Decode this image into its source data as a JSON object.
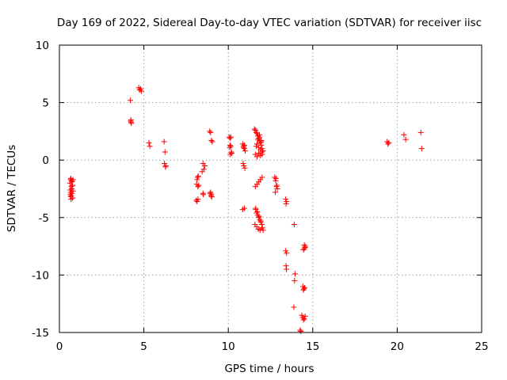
{
  "chart_data": {
    "type": "scatter",
    "title": "Day 169 of 2022, Sidereal Day-to-day VTEC variation (SDTVAR) for receiver iisc",
    "xlabel": "GPS time / hours",
    "ylabel": "SDTVAR / TECUs",
    "xlim": [
      0,
      25
    ],
    "ylim": [
      -15,
      10
    ],
    "xticks": [
      "0",
      "5",
      "10",
      "15",
      "20",
      "25"
    ],
    "yticks": [
      "10",
      "5",
      "0",
      "-5",
      "-10",
      "-15"
    ],
    "xtick_values": [
      0,
      5,
      10,
      15,
      20,
      25
    ],
    "ytick_values": [
      10,
      5,
      0,
      -5,
      -10,
      -15
    ],
    "grid": true,
    "marker": "+",
    "color": "#ff0000",
    "series": [
      {
        "name": "SDTVAR",
        "x": [
          0.62,
          0.65,
          0.68,
          0.7,
          0.72,
          0.75,
          0.78,
          0.8,
          0.63,
          0.66,
          0.7,
          0.74,
          0.78,
          0.64,
          0.69,
          0.73,
          0.77,
          0.8,
          0.67,
          4.2,
          4.22,
          4.24,
          4.26,
          4.23,
          4.7,
          4.75,
          4.8,
          4.85,
          5.3,
          5.35,
          6.2,
          6.25,
          6.3,
          6.22,
          6.28,
          8.1,
          8.15,
          8.2,
          8.25,
          8.12,
          8.18,
          8.22,
          8.15,
          8.2,
          8.5,
          8.55,
          8.6,
          8.45,
          8.52,
          8.5,
          8.9,
          8.95,
          9.0,
          9.05,
          8.92,
          8.98,
          9.02,
          8.95,
          9.0,
          10.05,
          10.1,
          10.15,
          10.2,
          10.08,
          10.12,
          10.18,
          10.1,
          10.15,
          10.85,
          10.9,
          10.95,
          11.0,
          10.88,
          10.92,
          10.98,
          10.85,
          10.95,
          10.9,
          10.95,
          11.55,
          11.6,
          11.65,
          11.7,
          11.75,
          11.8,
          11.85,
          11.9,
          11.95,
          12.0,
          12.05,
          11.6,
          11.7,
          11.8,
          11.9,
          12.0,
          11.65,
          11.75,
          11.85,
          11.95,
          11.62,
          11.72,
          11.82,
          11.92,
          11.58,
          11.68,
          11.78,
          11.88,
          11.98,
          11.6,
          11.7,
          11.8,
          11.9,
          12.0,
          11.62,
          11.68,
          11.74,
          11.8,
          11.86,
          11.92,
          11.98,
          12.02,
          12.06,
          11.7,
          11.8,
          11.9,
          12.0,
          11.85,
          11.95,
          12.75,
          12.8,
          12.85,
          12.9,
          12.78,
          12.82,
          12.88,
          13.4,
          13.45,
          13.42,
          13.4,
          13.45,
          13.42,
          13.44,
          13.9,
          13.95,
          13.92,
          13.88,
          14.25,
          14.3,
          14.35,
          14.4,
          14.45,
          14.5,
          14.55,
          14.42,
          14.48,
          14.52,
          14.45,
          14.5,
          14.55,
          14.45,
          14.5,
          14.55,
          19.4,
          19.45,
          19.5,
          20.4,
          20.5,
          21.4,
          21.45
        ],
        "y": [
          -2.0,
          -1.7,
          -1.6,
          -2.3,
          -1.8,
          -1.9,
          -2.2,
          -1.7,
          -2.6,
          -2.8,
          -3.1,
          -2.9,
          -3.3,
          -3.0,
          -3.4,
          -2.5,
          -2.2,
          -2.7,
          -3.2,
          5.2,
          3.4,
          3.3,
          3.2,
          3.5,
          6.3,
          6.1,
          6.2,
          6.0,
          1.5,
          1.2,
          1.6,
          0.7,
          -0.5,
          -0.3,
          -0.6,
          -3.5,
          -3.6,
          -3.4,
          -2.2,
          -2.1,
          -1.5,
          -1.4,
          -1.7,
          -2.3,
          -0.3,
          -0.8,
          -0.5,
          -1.0,
          -3.0,
          -2.9,
          2.5,
          2.4,
          1.7,
          1.6,
          -2.9,
          -3.1,
          -3.2,
          -2.8,
          -3.0,
          2.0,
          1.9,
          1.2,
          0.6,
          1.1,
          0.5,
          0.7,
          1.3,
          2.0,
          1.4,
          1.2,
          1.0,
          0.8,
          -0.3,
          -0.5,
          -0.7,
          -4.3,
          -4.2,
          1.1,
          1.3,
          2.7,
          2.6,
          2.4,
          2.3,
          2.1,
          1.9,
          1.7,
          1.5,
          1.3,
          1.0,
          0.8,
          -2.3,
          -2.1,
          -1.9,
          -1.7,
          -1.5,
          1.2,
          1.8,
          2.2,
          1.6,
          -4.2,
          -4.5,
          -4.9,
          -5.3,
          -5.6,
          -5.8,
          -6.0,
          -6.1,
          -5.9,
          0.5,
          0.3,
          0.6,
          0.4,
          0.5,
          -4.3,
          -4.6,
          -4.8,
          -5.0,
          -5.2,
          -5.4,
          -5.6,
          -5.9,
          -6.1,
          1.4,
          1.1,
          0.9,
          0.7,
          2.0,
          1.7,
          -1.5,
          -1.8,
          -2.3,
          -2.5,
          -2.8,
          -1.6,
          -2.2,
          -3.4,
          -3.6,
          -3.8,
          -7.9,
          -8.1,
          -9.2,
          -9.5,
          -5.6,
          -9.9,
          -10.5,
          -12.8,
          -14.8,
          -14.9,
          -13.5,
          -13.7,
          -13.9,
          -13.8,
          -13.6,
          -11.0,
          -11.2,
          -11.1,
          -11.3,
          -7.4,
          -7.6,
          -7.8,
          -7.7,
          -7.5,
          1.6,
          1.4,
          1.5,
          2.2,
          1.8,
          2.4,
          1.0
        ]
      }
    ]
  }
}
